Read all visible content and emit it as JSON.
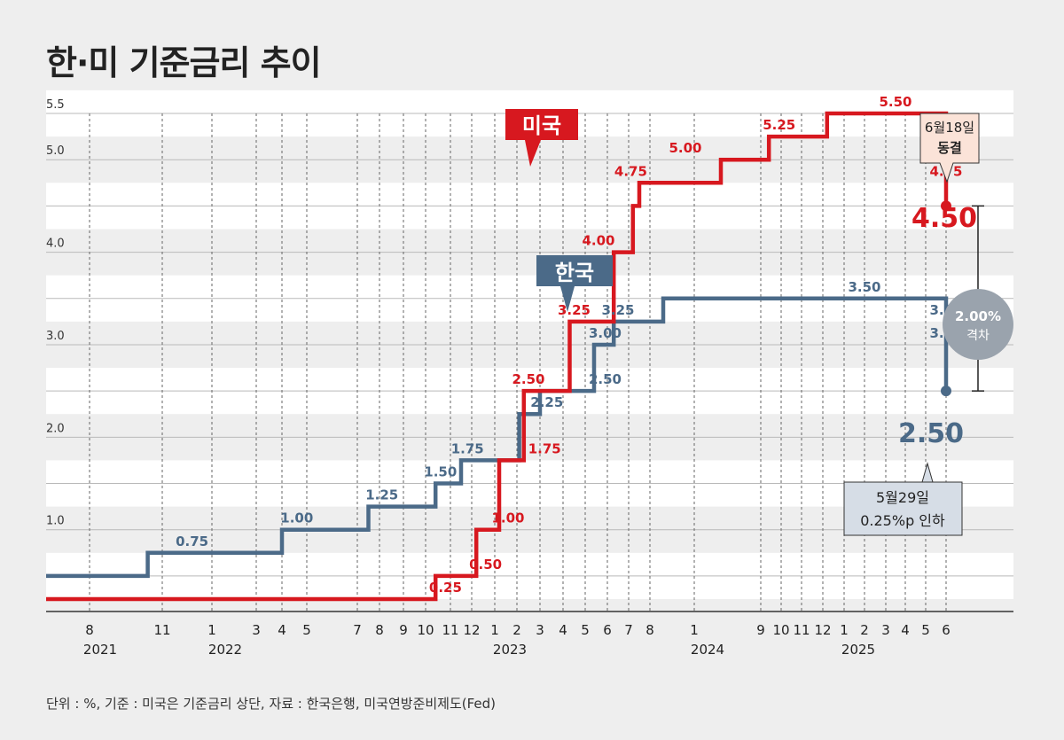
{
  "title": "한·미 기준금리 추이",
  "footer": "단위 : %, 기준 : 미국은 기준금리 상단, 자료 : 한국은행, 미국연방준비제도(Fed)",
  "colors": {
    "us": "#d7181f",
    "kr": "#4b6a88",
    "gap": "#9aa3ad",
    "background": "#eeeeee"
  },
  "chart_data": {
    "type": "line",
    "step": true,
    "ylim": [
      0,
      5.5
    ],
    "yticks": [
      "1.0",
      "2.0",
      "3.0",
      "4.0",
      "5.0",
      "5.5"
    ],
    "x_ticks": [
      "8",
      "11",
      "1",
      "3",
      "4",
      "5",
      "7",
      "8",
      "9",
      "10",
      "11",
      "12",
      "1",
      "2",
      "3",
      "4",
      "5",
      "6",
      "7",
      "8",
      "1",
      "9",
      "10",
      "11",
      "12",
      "1",
      "2",
      "3",
      "4",
      "5",
      "6"
    ],
    "years": [
      "2021",
      "2022",
      "2023",
      "2024",
      "2025"
    ],
    "series": [
      {
        "name": "미국",
        "steps": [
          {
            "x": 0,
            "y": 0.25
          },
          {
            "x": 10.4,
            "y": 0.5
          },
          {
            "x": 12.2,
            "y": 1.0
          },
          {
            "x": 13.2,
            "y": 1.75
          },
          {
            "x": 14.3,
            "y": 2.5
          },
          {
            "x": 16.3,
            "y": 3.25
          },
          {
            "x": 18.3,
            "y": 4.0
          },
          {
            "x": 19.2,
            "y": 4.5
          },
          {
            "x": 19.5,
            "y": 4.75
          },
          {
            "x": 21.4,
            "y": 5.0
          },
          {
            "x": 22.4,
            "y": 5.25
          },
          {
            "x": 25.2,
            "y": 5.5
          },
          {
            "x": 32.0,
            "y": 5.0
          },
          {
            "x": 33.0,
            "y": 4.75
          },
          {
            "x": 34.0,
            "y": 4.5
          },
          {
            "x": 40.4,
            "y": 4.5
          }
        ],
        "labels": [
          {
            "text": "0.25",
            "x": 10.8,
            "y": 0.25
          },
          {
            "text": "0.50",
            "x": 12.6,
            "y": 0.5
          },
          {
            "text": "1.00",
            "x": 13.6,
            "y": 1.0
          },
          {
            "text": "1.75",
            "x": 15.2,
            "y": 1.75
          },
          {
            "text": "2.50",
            "x": 14.5,
            "y": 2.5
          },
          {
            "text": "3.25",
            "x": 16.5,
            "y": 3.25
          },
          {
            "text": "4.00",
            "x": 17.6,
            "y": 4.0
          },
          {
            "text": "4.75",
            "x": 19.1,
            "y": 4.75
          },
          {
            "text": "5.00",
            "x": 20.8,
            "y": 5.0
          },
          {
            "text": "5.25",
            "x": 22.9,
            "y": 5.25
          },
          {
            "text": "5.50",
            "x": 28.5,
            "y": 5.5
          },
          {
            "text": "5.00",
            "x": 31.0,
            "y": 5.0
          },
          {
            "text": "4.75",
            "x": 33.4,
            "y": 4.75
          }
        ],
        "tag": "미국",
        "end_label": "4.50",
        "end_note": [
          "6월18일",
          "동결"
        ]
      },
      {
        "name": "한국",
        "steps": [
          {
            "x": 0,
            "y": 0.5
          },
          {
            "x": 1.8,
            "y": 0.75
          },
          {
            "x": 5.0,
            "y": 1.0
          },
          {
            "x": 7.5,
            "y": 1.25
          },
          {
            "x": 10.4,
            "y": 1.5
          },
          {
            "x": 11.5,
            "y": 1.75
          },
          {
            "x": 14.1,
            "y": 2.25
          },
          {
            "x": 15.0,
            "y": 2.5
          },
          {
            "x": 17.4,
            "y": 3.0
          },
          {
            "x": 18.3,
            "y": 3.25
          },
          {
            "x": 20.3,
            "y": 3.5
          },
          {
            "x": 31.9,
            "y": 3.25
          },
          {
            "x": 32.9,
            "y": 3.0
          },
          {
            "x": 36.8,
            "y": 2.75
          },
          {
            "x": 38.6,
            "y": 2.5
          },
          {
            "x": 39.5,
            "y": 2.5
          }
        ],
        "labels": [
          {
            "text": "0.75",
            "x": 2.6,
            "y": 0.75
          },
          {
            "text": "1.00",
            "x": 5.6,
            "y": 1.0
          },
          {
            "text": "1.25",
            "x": 8.1,
            "y": 1.25
          },
          {
            "text": "1.50",
            "x": 10.6,
            "y": 1.5
          },
          {
            "text": "1.75",
            "x": 11.8,
            "y": 1.75
          },
          {
            "text": "2.25",
            "x": 15.3,
            "y": 2.25
          },
          {
            "text": "2.50",
            "x": 17.9,
            "y": 2.5
          },
          {
            "text": "3.00",
            "x": 17.9,
            "y": 3.0
          },
          {
            "text": "3.25",
            "x": 18.5,
            "y": 3.25
          },
          {
            "text": "3.50",
            "x": 27.0,
            "y": 3.5
          },
          {
            "text": "3.25",
            "x": 32.5,
            "y": 3.25
          },
          {
            "text": "3.00",
            "x": 35.0,
            "y": 3.0
          }
        ],
        "tag": "한국",
        "end_label": "2.50",
        "end_note": [
          "5월29일",
          "0.25%p 인하"
        ]
      }
    ],
    "gap_label": [
      "2.00%",
      "격차"
    ]
  }
}
